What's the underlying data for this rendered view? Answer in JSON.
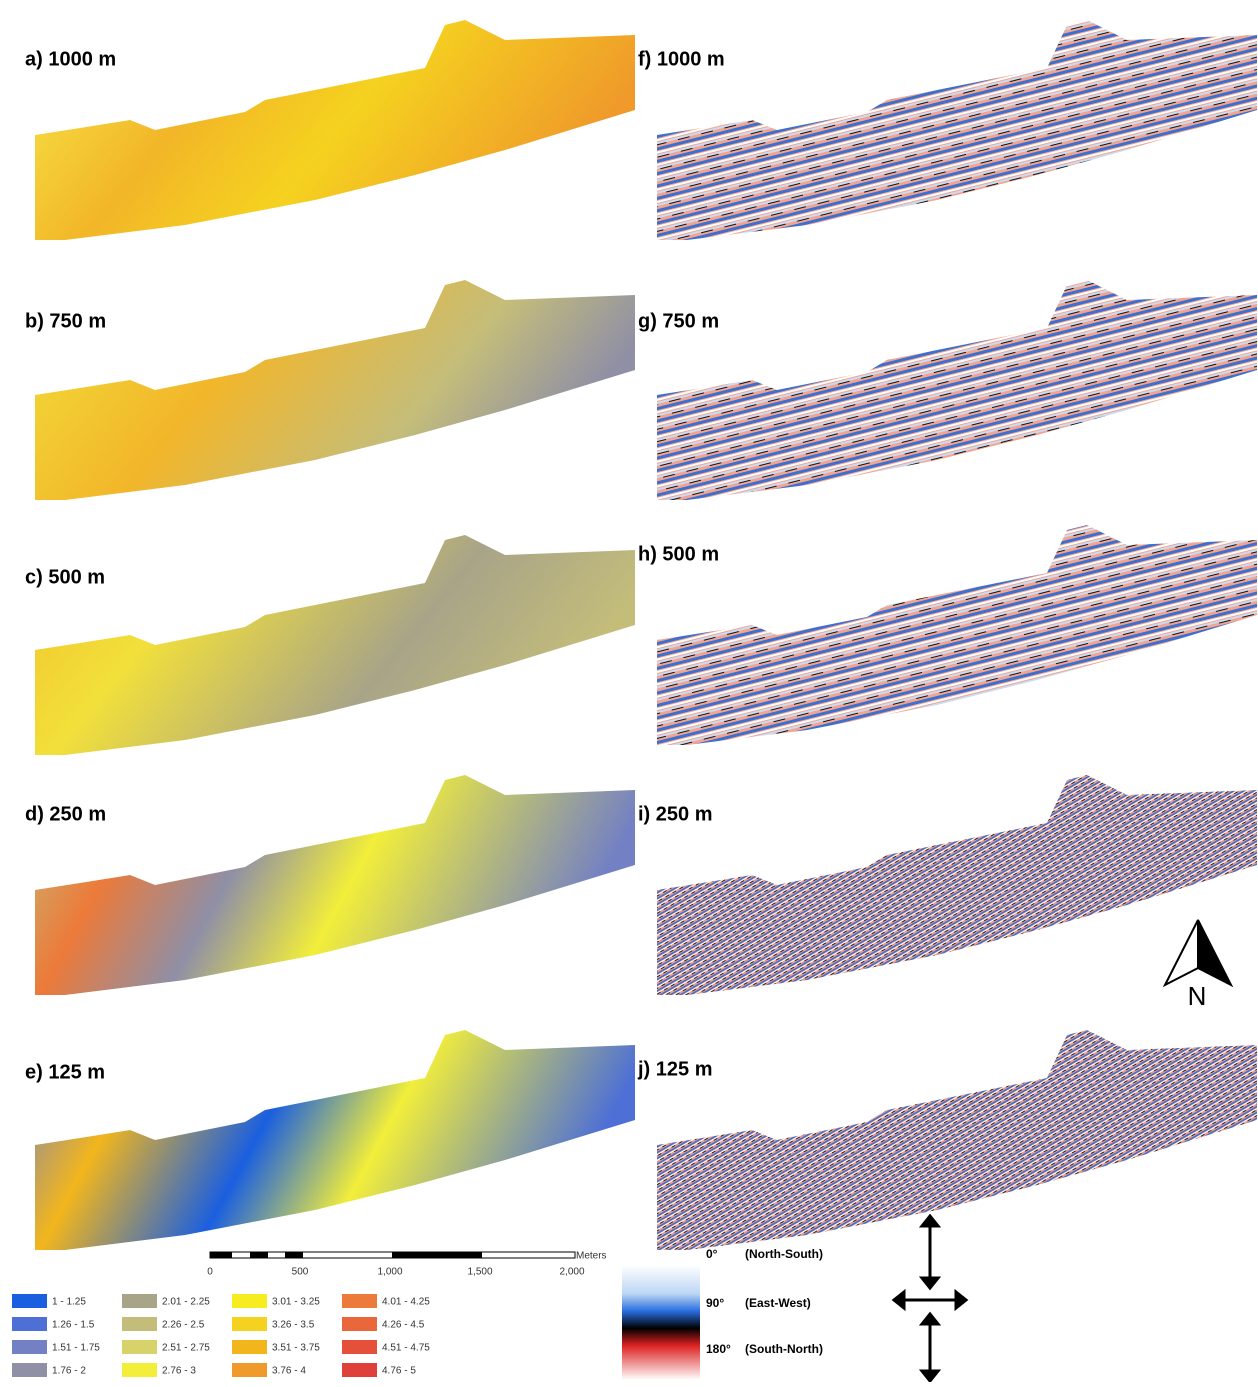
{
  "left_panels": [
    {
      "label": "a) 1000 m"
    },
    {
      "label": "b) 750 m"
    },
    {
      "label": "c) 500 m"
    },
    {
      "label": "d) 250 m"
    },
    {
      "label": "e) 125 m"
    }
  ],
  "right_panels": [
    {
      "label": "f) 1000 m"
    },
    {
      "label": "g) 750 m"
    },
    {
      "label": "h) 500 m"
    },
    {
      "label": "i) 250 m"
    },
    {
      "label": "j) 125 m"
    }
  ],
  "scale_bar": {
    "ticks": [
      "0",
      "500",
      "1,000",
      "1,500",
      "2,000"
    ],
    "unit": "Meters"
  },
  "legend": [
    {
      "label": "1 - 1.25",
      "color": "#1a5fe0"
    },
    {
      "label": "1.26 - 1.5",
      "color": "#4d6fd6"
    },
    {
      "label": "1.51 - 1.75",
      "color": "#7380c4"
    },
    {
      "label": "1.76 - 2",
      "color": "#8f8fa6"
    },
    {
      "label": "2.01 - 2.25",
      "color": "#a8a488"
    },
    {
      "label": "2.26 - 2.5",
      "color": "#c4bd7a"
    },
    {
      "label": "2.51 - 2.75",
      "color": "#d8d26a"
    },
    {
      "label": "2.76 - 3",
      "color": "#f2ee3a"
    },
    {
      "label": "3.01 - 3.25",
      "color": "#f7ec1f"
    },
    {
      "label": "3.26 - 3.5",
      "color": "#f5d21f"
    },
    {
      "label": "3.51 - 3.75",
      "color": "#f2b61c"
    },
    {
      "label": "3.76 - 4",
      "color": "#ef9a2a"
    },
    {
      "label": "4.01 - 4.25",
      "color": "#ec7a3a"
    },
    {
      "label": "4.26 - 4.5",
      "color": "#e9673a"
    },
    {
      "label": "4.51 - 4.75",
      "color": "#e5503a"
    },
    {
      "label": "4.76 - 5",
      "color": "#e0403a"
    }
  ],
  "orientation_legend": [
    {
      "angle": "0°",
      "description": "(North-South)"
    },
    {
      "angle": "90°",
      "description": "(East-West)"
    },
    {
      "angle": "180°",
      "description": "(South-North)"
    }
  ],
  "north_arrow": "N"
}
